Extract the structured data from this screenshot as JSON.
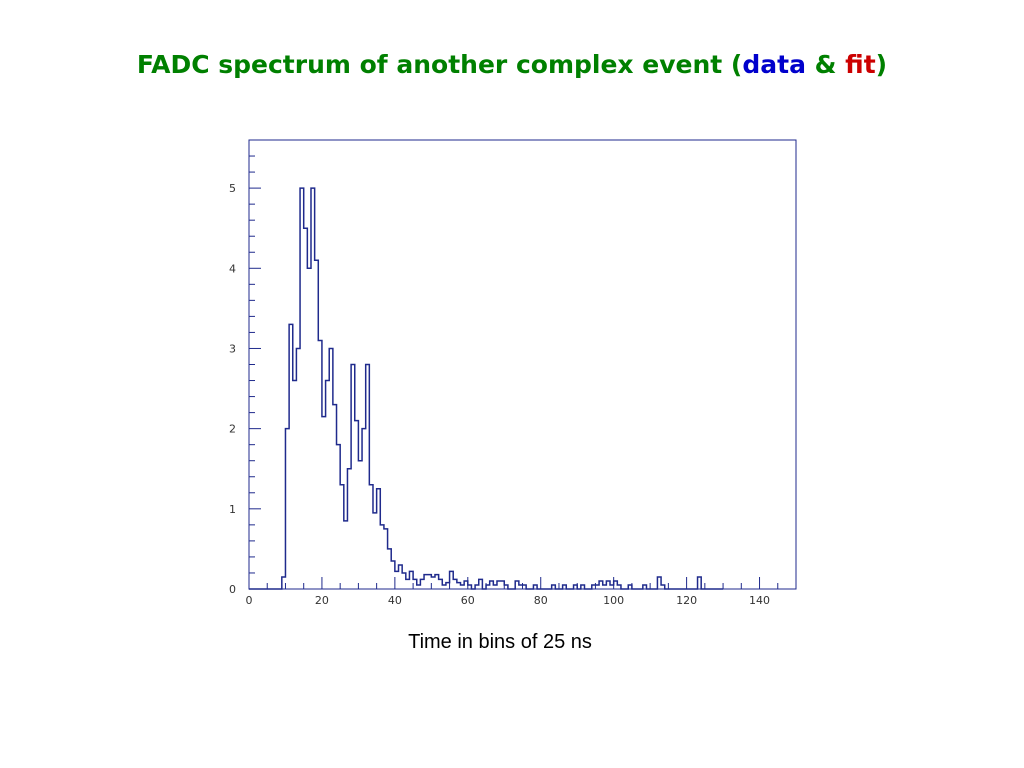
{
  "title": {
    "prefix": "FADC spectrum of another complex event (",
    "data_word": "data",
    "amp": " & ",
    "fit_word": "fit",
    "suffix": ")"
  },
  "colors": {
    "title": "#008000",
    "data_word": "#0000cc",
    "fit_word": "#cc0000",
    "histogram": "#1f2a8c",
    "frame": "#1f2a8c"
  },
  "chart_data": {
    "type": "histogram",
    "title": "FADC spectrum of another complex event (data & fit)",
    "xlabel": "Time in bins of 25 ns",
    "ylabel": "",
    "xlim": [
      0,
      150
    ],
    "ylim": [
      0,
      5.6
    ],
    "xticks": [
      0,
      20,
      40,
      60,
      80,
      100,
      120,
      140
    ],
    "yticks": [
      0,
      1,
      2,
      3,
      4,
      5
    ],
    "grid": false,
    "bin_width": 1,
    "bin_start": 0,
    "series": [
      {
        "values": [
          0,
          0,
          0,
          0,
          0,
          0,
          0,
          0,
          0,
          0.15,
          2.0,
          3.3,
          2.6,
          3.0,
          5.0,
          4.5,
          4.0,
          5.0,
          4.1,
          3.1,
          2.15,
          2.6,
          3.0,
          2.3,
          1.8,
          1.3,
          0.85,
          1.5,
          2.8,
          2.1,
          1.6,
          2.0,
          2.8,
          1.3,
          0.95,
          1.25,
          0.8,
          0.75,
          0.5,
          0.35,
          0.22,
          0.3,
          0.2,
          0.12,
          0.22,
          0.12,
          0.05,
          0.12,
          0.18,
          0.18,
          0.15,
          0.18,
          0.12,
          0.05,
          0.08,
          0.22,
          0.12,
          0.08,
          0.05,
          0.1,
          0.05,
          0,
          0.05,
          0.12,
          0,
          0.05,
          0.1,
          0.05,
          0.1,
          0.1,
          0.05,
          0,
          0,
          0.1,
          0.05,
          0.05,
          0,
          0,
          0.05,
          0,
          0,
          0,
          0,
          0.05,
          0,
          0,
          0.05,
          0,
          0,
          0.05,
          0,
          0.05,
          0,
          0,
          0.05,
          0.05,
          0.1,
          0.05,
          0.1,
          0.05,
          0.1,
          0.05,
          0,
          0,
          0.05,
          0,
          0,
          0,
          0.05,
          0,
          0,
          0,
          0.15,
          0.05,
          0,
          0,
          0,
          0,
          0,
          0,
          0,
          0,
          0,
          0.15,
          0,
          0,
          0,
          0,
          0,
          0
        ]
      }
    ]
  }
}
